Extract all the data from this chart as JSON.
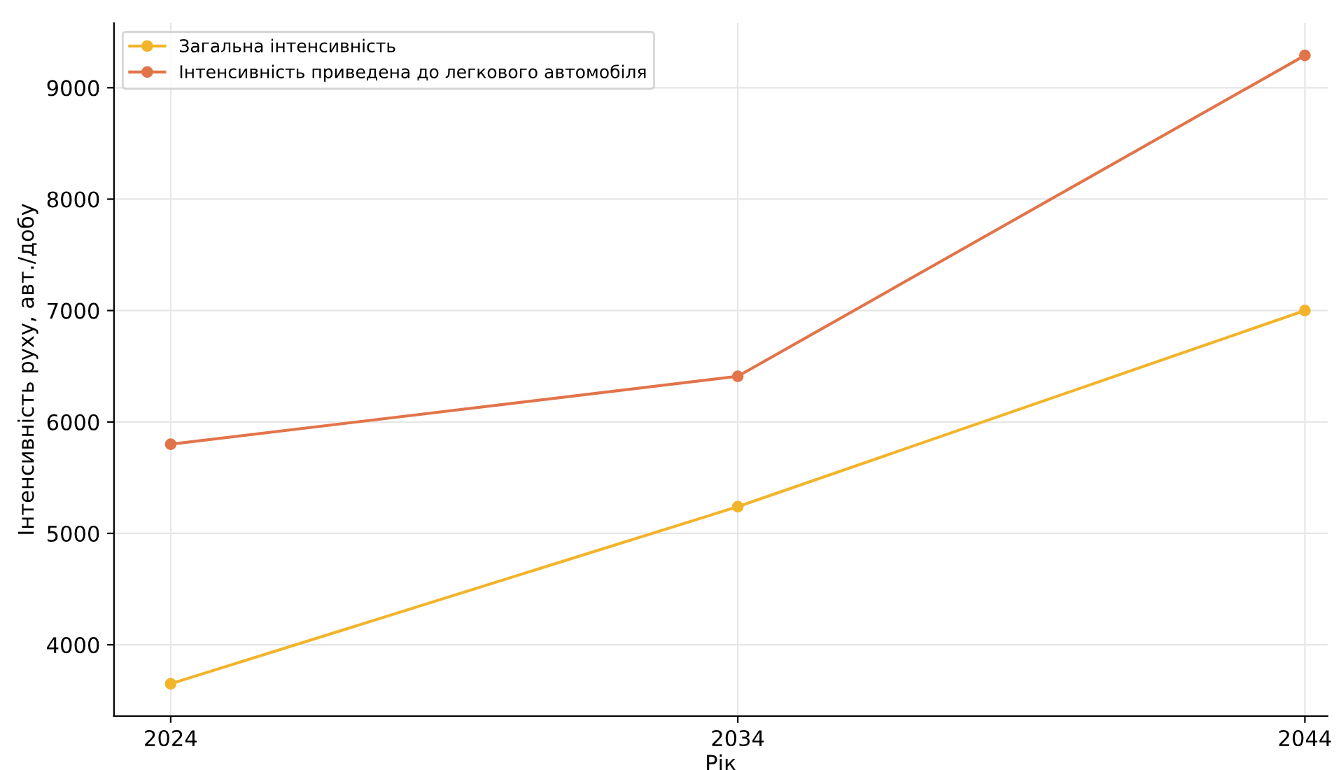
{
  "chart_data": {
    "type": "line",
    "xlabel": "Рік",
    "ylabel": "Інтенсивність руху, авт./добу",
    "x": [
      2024,
      2034,
      2044
    ],
    "series": [
      {
        "name": "Загальна інтенсивність",
        "color": "#f2b42a",
        "values": [
          3650,
          5240,
          7000
        ]
      },
      {
        "name": "Інтенсивність приведена до легкового автомобіля",
        "color": "#e2744a",
        "values": [
          5800,
          6410,
          9290
        ]
      }
    ],
    "xlim": [
      2023,
      2044.4
    ],
    "xticks": [
      2024,
      2034,
      2044
    ],
    "ylim": [
      3360,
      9580
    ],
    "yticks": [
      4000,
      5000,
      6000,
      7000,
      8000,
      9000
    ],
    "grid": true,
    "legend": "top left",
    "marker": "circle",
    "line_style": "solid"
  }
}
